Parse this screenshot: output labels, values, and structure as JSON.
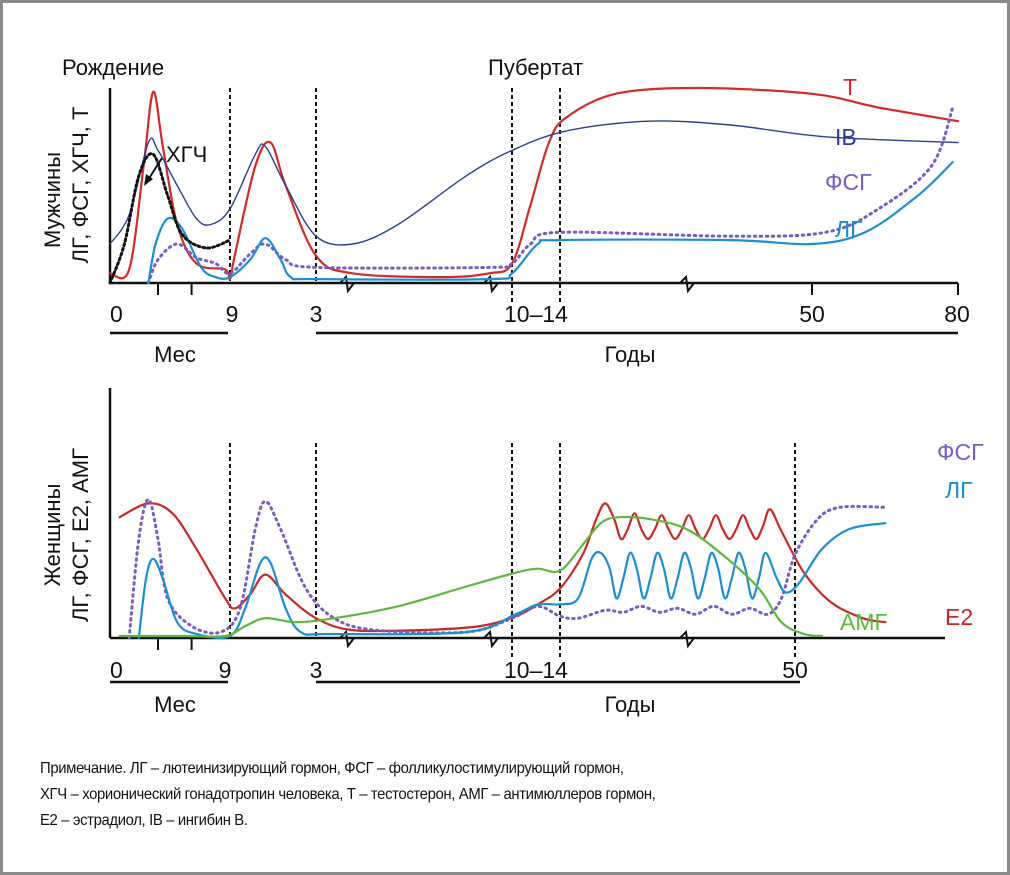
{
  "colors": {
    "T": "#d42a2a",
    "IB": "#2b3f8f",
    "FSH": "#7a5cc0",
    "LH": "#1a8fd0",
    "HCG": "#111111",
    "E2": "#c82828",
    "AMH": "#5cb83c",
    "axis": "#111111"
  },
  "chart_data": [
    {
      "type": "line",
      "title": "",
      "panel": "male",
      "ylabel_line1": "Мужчины",
      "ylabel_line2": "ЛГ, ФСГ, ХГЧ, Т",
      "top_annotations": [
        {
          "text": "Рождение",
          "at": "0"
        },
        {
          "text": "Пубертат",
          "at": "10–14"
        }
      ],
      "x_ticks": [
        "0",
        "9",
        "3",
        "10–14",
        "50",
        "80"
      ],
      "x_groups": [
        {
          "label": "Мес",
          "from": "0",
          "to": "9"
        },
        {
          "label": "Годы",
          "from": "3",
          "to": "80"
        }
      ],
      "x_axis_breaks": 3,
      "ylim": [
        0,
        1
      ],
      "x_units_note": "x in schematic axis units 0–100 (0=birth, 25=9 mo, 42=3 y, 85=10 y, 98=14 y, 175=50 y, 230=80 y)",
      "annotation": {
        "text": "ХГЧ",
        "arrow_to_series": "ХГЧ"
      },
      "series": [
        {
          "name": "Т",
          "key": "T",
          "style": "solid",
          "label_visible": "Т",
          "points": [
            [
              0,
              0.05
            ],
            [
              4,
              0.07
            ],
            [
              7,
              0.6
            ],
            [
              9,
              0.98
            ],
            [
              11,
              0.7
            ],
            [
              14,
              0.3
            ],
            [
              18,
              0.1
            ],
            [
              24,
              0.07
            ],
            [
              25,
              0.02
            ],
            [
              26,
              0.15
            ],
            [
              30,
              0.6
            ],
            [
              33,
              0.72
            ],
            [
              36,
              0.5
            ],
            [
              42,
              0.14
            ],
            [
              50,
              0.05
            ],
            [
              70,
              0.03
            ],
            [
              80,
              0.05
            ],
            [
              85,
              0.1
            ],
            [
              90,
              0.4
            ],
            [
              95,
              0.72
            ],
            [
              100,
              0.85
            ],
            [
              115,
              0.97
            ],
            [
              140,
              1.0
            ],
            [
              175,
              0.97
            ],
            [
              200,
              0.9
            ],
            [
              230,
              0.83
            ]
          ]
        },
        {
          "name": "IB",
          "key": "IB",
          "style": "solid",
          "label_visible": "IB",
          "points": [
            [
              0,
              0.2
            ],
            [
              4,
              0.35
            ],
            [
              8,
              0.72
            ],
            [
              10,
              0.68
            ],
            [
              14,
              0.5
            ],
            [
              18,
              0.33
            ],
            [
              21,
              0.3
            ],
            [
              25,
              0.38
            ],
            [
              30,
              0.66
            ],
            [
              32,
              0.7
            ],
            [
              36,
              0.5
            ],
            [
              42,
              0.24
            ],
            [
              50,
              0.2
            ],
            [
              60,
              0.3
            ],
            [
              75,
              0.55
            ],
            [
              85,
              0.68
            ],
            [
              100,
              0.78
            ],
            [
              125,
              0.83
            ],
            [
              150,
              0.81
            ],
            [
              180,
              0.75
            ],
            [
              230,
              0.72
            ]
          ]
        },
        {
          "name": "ФСГ",
          "key": "FSH",
          "style": "dotted",
          "label_visible": "ФСГ",
          "points": [
            [
              8,
              0.0
            ],
            [
              10,
              0.12
            ],
            [
              14,
              0.2
            ],
            [
              18,
              0.13
            ],
            [
              22,
              0.1
            ],
            [
              25,
              0.05
            ],
            [
              29,
              0.15
            ],
            [
              32,
              0.2
            ],
            [
              36,
              0.12
            ],
            [
              42,
              0.08
            ],
            [
              80,
              0.08
            ],
            [
              85,
              0.1
            ],
            [
              90,
              0.2
            ],
            [
              98,
              0.26
            ],
            [
              150,
              0.24
            ],
            [
              180,
              0.26
            ],
            [
              200,
              0.38
            ],
            [
              220,
              0.6
            ],
            [
              228,
              0.9
            ]
          ]
        },
        {
          "name": "ЛГ",
          "key": "LH",
          "style": "solid",
          "label_visible": "ЛГ",
          "points": [
            [
              8,
              0.0
            ],
            [
              9.5,
              0.2
            ],
            [
              12,
              0.33
            ],
            [
              15,
              0.28
            ],
            [
              19,
              0.08
            ],
            [
              22,
              0.03
            ],
            [
              25,
              0.03
            ],
            [
              29,
              0.12
            ],
            [
              32,
              0.23
            ],
            [
              35,
              0.12
            ],
            [
              37,
              0.03
            ],
            [
              42,
              0.02
            ],
            [
              80,
              0.02
            ],
            [
              85,
              0.05
            ],
            [
              92,
              0.2
            ],
            [
              98,
              0.22
            ],
            [
              150,
              0.22
            ],
            [
              175,
              0.2
            ],
            [
              195,
              0.26
            ],
            [
              215,
              0.45
            ],
            [
              228,
              0.62
            ]
          ]
        },
        {
          "name": "ХГЧ",
          "key": "HCG",
          "style": "dotted-black",
          "label_visible": "",
          "points": [
            [
              0,
              0.0
            ],
            [
              3,
              0.2
            ],
            [
              6,
              0.55
            ],
            [
              9,
              0.66
            ],
            [
              12,
              0.45
            ],
            [
              15,
              0.25
            ],
            [
              20,
              0.18
            ],
            [
              25,
              0.22
            ]
          ]
        }
      ]
    },
    {
      "type": "line",
      "title": "",
      "panel": "female",
      "ylabel_line1": "Женщины",
      "ylabel_line2": "ЛГ, ФСГ, Е2, АМГ",
      "x_ticks": [
        "0",
        "9",
        "3",
        "10–14",
        "50"
      ],
      "x_groups": [
        {
          "label": "Мес",
          "from": "0",
          "to": "9"
        },
        {
          "label": "Годы",
          "from": "3",
          "to": "50"
        }
      ],
      "x_axis_breaks": 3,
      "ylim": [
        0,
        1
      ],
      "series": [
        {
          "name": "Е2",
          "key": "E2",
          "style": "solid",
          "label_visible": "Е2",
          "points": [
            [
              2,
              0.61
            ],
            [
              8,
              0.68
            ],
            [
              13,
              0.63
            ],
            [
              18,
              0.45
            ],
            [
              24,
              0.2
            ],
            [
              26,
              0.15
            ],
            [
              29,
              0.22
            ],
            [
              32,
              0.32
            ],
            [
              36,
              0.22
            ],
            [
              42,
              0.1
            ],
            [
              50,
              0.04
            ],
            [
              65,
              0.04
            ],
            [
              78,
              0.06
            ],
            [
              86,
              0.11
            ],
            [
              92,
              0.17
            ],
            [
              98,
              0.25
            ],
            [
              103,
              0.42
            ],
            [
              106,
              0.6
            ],
            [
              108,
              0.68
            ],
            [
              110,
              0.6
            ],
            [
              111.5,
              0.5
            ],
            [
              113,
              0.55
            ],
            [
              114.5,
              0.63
            ],
            [
              116,
              0.55
            ],
            [
              117.5,
              0.5
            ],
            [
              119,
              0.55
            ],
            [
              120.5,
              0.62
            ],
            [
              122,
              0.55
            ],
            [
              123.5,
              0.5
            ],
            [
              125,
              0.55
            ],
            [
              126.5,
              0.62
            ],
            [
              128,
              0.55
            ],
            [
              129.5,
              0.5
            ],
            [
              131,
              0.55
            ],
            [
              132.5,
              0.62
            ],
            [
              134,
              0.55
            ],
            [
              135.5,
              0.5
            ],
            [
              137,
              0.55
            ],
            [
              138.5,
              0.62
            ],
            [
              140,
              0.55
            ],
            [
              141.5,
              0.5
            ],
            [
              143,
              0.57
            ],
            [
              144.5,
              0.65
            ],
            [
              147,
              0.54
            ],
            [
              152,
              0.33
            ],
            [
              158,
              0.18
            ],
            [
              165,
              0.1
            ],
            [
              170,
              0.08
            ]
          ]
        },
        {
          "name": "ФСГ",
          "key": "FSH",
          "style": "dotted",
          "label_visible": "ФСГ",
          "points": [
            [
              4,
              0.0
            ],
            [
              6,
              0.5
            ],
            [
              8,
              0.7
            ],
            [
              10,
              0.5
            ],
            [
              12,
              0.2
            ],
            [
              17,
              0.06
            ],
            [
              23,
              0.03
            ],
            [
              27,
              0.15
            ],
            [
              30,
              0.55
            ],
            [
              32,
              0.69
            ],
            [
              35,
              0.55
            ],
            [
              40,
              0.25
            ],
            [
              46,
              0.1
            ],
            [
              55,
              0.04
            ],
            [
              75,
              0.03
            ],
            [
              85,
              0.1
            ],
            [
              92,
              0.16
            ],
            [
              98,
              0.11
            ],
            [
              102,
              0.1
            ],
            [
              108,
              0.14
            ],
            [
              112,
              0.13
            ],
            [
              116,
              0.16
            ],
            [
              120,
              0.13
            ],
            [
              124,
              0.15
            ],
            [
              128,
              0.12
            ],
            [
              132,
              0.16
            ],
            [
              136,
              0.12
            ],
            [
              140,
              0.15
            ],
            [
              144,
              0.12
            ],
            [
              147,
              0.2
            ],
            [
              150,
              0.42
            ],
            [
              155,
              0.6
            ],
            [
              160,
              0.66
            ],
            [
              170,
              0.66
            ]
          ]
        },
        {
          "name": "ЛГ",
          "key": "LH",
          "style": "solid",
          "label_visible": "ЛГ",
          "points": [
            [
              6,
              0.0
            ],
            [
              7.5,
              0.3
            ],
            [
              9,
              0.4
            ],
            [
              11,
              0.3
            ],
            [
              14,
              0.08
            ],
            [
              18,
              0.02
            ],
            [
              25,
              0.01
            ],
            [
              28,
              0.15
            ],
            [
              31,
              0.38
            ],
            [
              33,
              0.38
            ],
            [
              36,
              0.15
            ],
            [
              39,
              0.03
            ],
            [
              45,
              0.02
            ],
            [
              75,
              0.03
            ],
            [
              86,
              0.12
            ],
            [
              92,
              0.17
            ],
            [
              98,
              0.17
            ],
            [
              102,
              0.2
            ],
            [
              105,
              0.4
            ],
            [
              107,
              0.43
            ],
            [
              109,
              0.35
            ],
            [
              110.5,
              0.2
            ],
            [
              112,
              0.3
            ],
            [
              113.5,
              0.43
            ],
            [
              115,
              0.35
            ],
            [
              116.5,
              0.2
            ],
            [
              118,
              0.3
            ],
            [
              119.5,
              0.43
            ],
            [
              121,
              0.35
            ],
            [
              122.5,
              0.2
            ],
            [
              124,
              0.3
            ],
            [
              125.5,
              0.43
            ],
            [
              127,
              0.35
            ],
            [
              128.5,
              0.2
            ],
            [
              130,
              0.3
            ],
            [
              131.5,
              0.43
            ],
            [
              133,
              0.35
            ],
            [
              134.5,
              0.2
            ],
            [
              136,
              0.3
            ],
            [
              137.5,
              0.43
            ],
            [
              139,
              0.35
            ],
            [
              140.5,
              0.2
            ],
            [
              142,
              0.3
            ],
            [
              143.5,
              0.43
            ],
            [
              146,
              0.3
            ],
            [
              148,
              0.23
            ],
            [
              151,
              0.28
            ],
            [
              156,
              0.45
            ],
            [
              162,
              0.55
            ],
            [
              170,
              0.58
            ]
          ]
        },
        {
          "name": "АМГ",
          "key": "AMH",
          "style": "solid",
          "label_visible": "АМГ",
          "points": [
            [
              2,
              0.01
            ],
            [
              15,
              0.01
            ],
            [
              24,
              0.01
            ],
            [
              28,
              0.06
            ],
            [
              32,
              0.1
            ],
            [
              38,
              0.08
            ],
            [
              46,
              0.1
            ],
            [
              60,
              0.16
            ],
            [
              75,
              0.26
            ],
            [
              86,
              0.33
            ],
            [
              92,
              0.35
            ],
            [
              98,
              0.34
            ],
            [
              103,
              0.47
            ],
            [
              107,
              0.58
            ],
            [
              111,
              0.61
            ],
            [
              118,
              0.6
            ],
            [
              126,
              0.55
            ],
            [
              134,
              0.42
            ],
            [
              142,
              0.25
            ],
            [
              147,
              0.08
            ],
            [
              152,
              0.02
            ],
            [
              156,
              0.01
            ]
          ]
        }
      ]
    }
  ],
  "note": {
    "lines": [
      "Примечание. ЛГ – лютеинизирующий гормон, ФСГ – фолликулостимулирующий гормон,",
      "ХГЧ – хорионический гонадотропин человека, Т – тестостерон, АМГ – антимюллеров гормон,",
      "Е2 – эстрадиол, IB – ингибин В."
    ]
  }
}
